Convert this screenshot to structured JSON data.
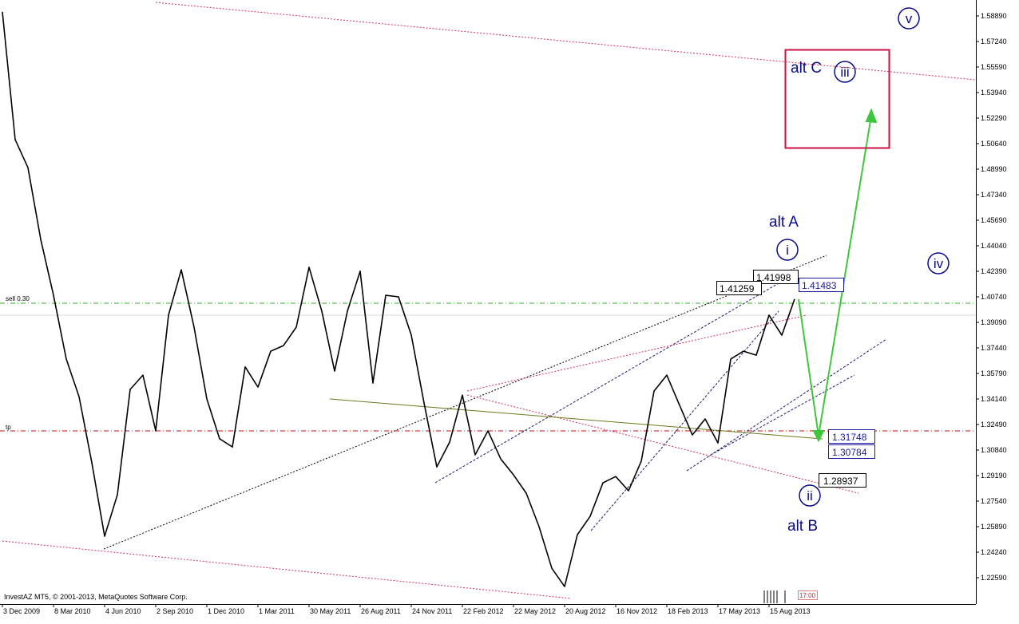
{
  "chart_data": {
    "type": "line",
    "color": "#000000",
    "grid": false,
    "categories": [
      "3 Dec 2009",
      null,
      null,
      null,
      "8 Mar 2010",
      null,
      null,
      null,
      "4 Jun 2010",
      null,
      null,
      null,
      "2 Sep 2010",
      null,
      null,
      null,
      "1 Dec 2010",
      null,
      null,
      null,
      "1 Mar 2011",
      null,
      null,
      null,
      "30 May 2011",
      null,
      null,
      null,
      "26 Aug 2011",
      null,
      null,
      null,
      "24 Nov 2011",
      null,
      null,
      null,
      "22 Feb 2012",
      null,
      null,
      null,
      "22 May 2012",
      null,
      null,
      null,
      "20 Aug 2012",
      null,
      null,
      null,
      "16 Nov 2012",
      null,
      null,
      null,
      "18 Feb 2013",
      null,
      null,
      null,
      "17 May 2013",
      null,
      null,
      null,
      "15 Aug 2013",
      null,
      null
    ],
    "values": [
      1.5915,
      1.509,
      1.4909,
      1.4445,
      1.4084,
      1.3672,
      1.3429,
      1.3002,
      1.2527,
      1.2795,
      1.3476,
      1.3568,
      1.3208,
      1.3956,
      1.4249,
      1.3878,
      1.3414,
      1.3157,
      1.3104,
      1.3621,
      1.3491,
      1.3723,
      1.3759,
      1.3878,
      1.4265,
      1.3981,
      1.3594,
      1.3981,
      1.424,
      1.3517,
      1.4084,
      1.4074,
      1.3827,
      1.3388,
      1.2975,
      1.3135,
      1.3439,
      1.3053,
      1.3208,
      1.3027,
      1.2924,
      1.2805,
      1.2589,
      1.232,
      1.2202,
      1.2537,
      1.2656,
      1.2872,
      1.2913,
      1.2821,
      1.3012,
      1.3465,
      1.3568,
      1.3373,
      1.3182,
      1.3285,
      1.313,
      1.3672,
      1.3723,
      1.3697,
      1.3956,
      1.3826,
      1.4059
    ],
    "ylim": [
      1.2089,
      1.5992
    ],
    "yticks": [
      {
        "value": 1.5889,
        "label": "1.58890"
      },
      {
        "value": 1.5724,
        "label": "1.57240"
      },
      {
        "value": 1.5559,
        "label": "1.55590"
      },
      {
        "value": 1.5394,
        "label": "1.53940"
      },
      {
        "value": 1.5229,
        "label": "1.52290"
      },
      {
        "value": 1.5064,
        "label": "1.50640"
      },
      {
        "value": 1.4899,
        "label": "1.48990"
      },
      {
        "value": 1.4734,
        "label": "1.47340"
      },
      {
        "value": 1.4569,
        "label": "1.45690"
      },
      {
        "value": 1.4404,
        "label": "1.44040"
      },
      {
        "value": 1.4239,
        "label": "1.42390"
      },
      {
        "value": 1.4074,
        "label": "1.40740"
      },
      {
        "value": 1.3909,
        "label": "1.39090"
      },
      {
        "value": 1.3744,
        "label": "1.37440"
      },
      {
        "value": 1.3579,
        "label": "1.35790"
      },
      {
        "value": 1.3414,
        "label": "1.34140"
      },
      {
        "value": 1.3249,
        "label": "1.32490"
      },
      {
        "value": 1.3084,
        "label": "1.30840"
      },
      {
        "value": 1.2919,
        "label": "1.29190"
      },
      {
        "value": 1.2754,
        "label": "1.27540"
      },
      {
        "value": 1.2589,
        "label": "1.25890"
      },
      {
        "value": 1.2424,
        "label": "1.24240"
      },
      {
        "value": 1.2259,
        "label": "1.22590"
      }
    ],
    "annotations": {
      "alt_a": "alt A",
      "alt_b": "alt B",
      "alt_c": "alt C",
      "waves": [
        "i",
        "ii",
        "iii",
        "iv",
        "v"
      ],
      "prices": [
        "1.41998",
        "1.41259",
        "1.41483",
        "1.31748",
        "1.30784",
        "1.28937"
      ],
      "sell": "sell 0.30",
      "tp": "tp",
      "copyright": "InvestAZ MT5, © 2001-2013, MetaQuotes Software Corp.",
      "time": "17:00"
    }
  }
}
